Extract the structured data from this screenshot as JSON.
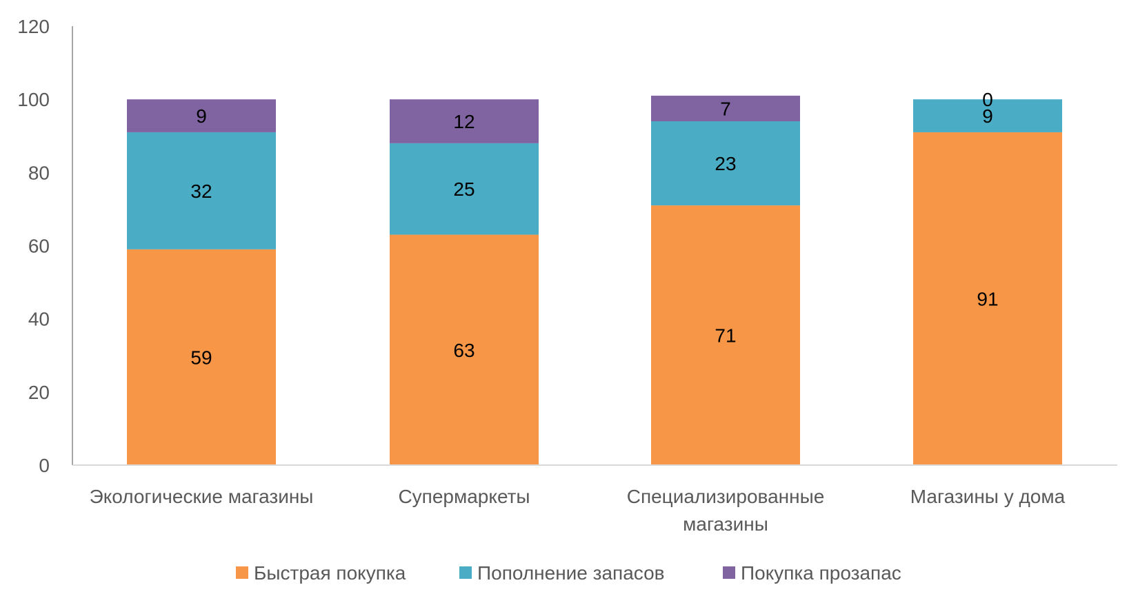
{
  "chart_data": {
    "type": "bar",
    "stacked": true,
    "title": "",
    "xlabel": "",
    "ylabel": "",
    "ylim": [
      0,
      120
    ],
    "yticks": [
      0,
      20,
      40,
      60,
      80,
      100,
      120
    ],
    "grid": false,
    "legend_position": "bottom",
    "categories": [
      [
        "Экологические магазины"
      ],
      [
        "Супермаркеты"
      ],
      [
        "Специализированные",
        "магазины"
      ],
      [
        "Магазины у дома"
      ]
    ],
    "series": [
      {
        "name": "Быстрая покупка",
        "color": "#F79646",
        "values": [
          59,
          63,
          71,
          91
        ]
      },
      {
        "name": "Пополнение запасов",
        "color": "#4BACC6",
        "values": [
          32,
          25,
          23,
          9
        ]
      },
      {
        "name": "Покупка прозапас",
        "color": "#8064A2",
        "values": [
          9,
          12,
          7,
          0
        ]
      }
    ]
  }
}
